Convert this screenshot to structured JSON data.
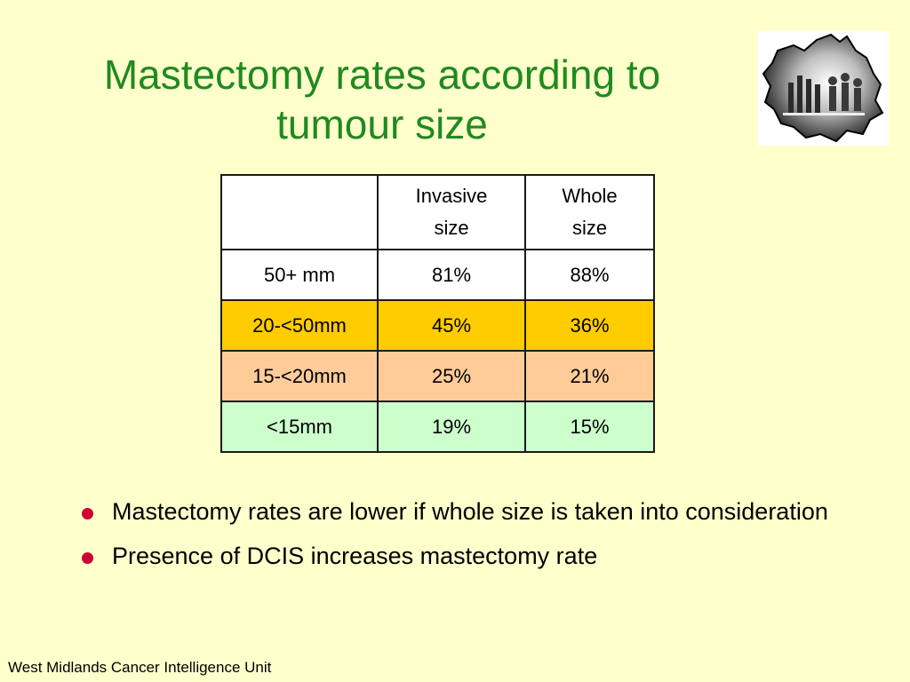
{
  "slide": {
    "title_line1": "Mastectomy rates according to",
    "title_line2": "tumour size",
    "footer": "West Midlands Cancer Intelligence Unit"
  },
  "table": {
    "headers": [
      "",
      "Invasive",
      "size",
      "Whole",
      "size"
    ],
    "rows": [
      {
        "label": "50+ mm",
        "invasive": "81%",
        "whole": "88%",
        "color": "#ffffff"
      },
      {
        "label": "20-<50mm",
        "invasive": "45%",
        "whole": "36%",
        "color": "#ffcc00"
      },
      {
        "label": "15-<20mm",
        "invasive": "25%",
        "whole": "21%",
        "color": "#ffcc99"
      },
      {
        "label": "<15mm",
        "invasive": "19%",
        "whole": "15%",
        "color": "#ccffcc"
      }
    ]
  },
  "bullets": [
    "Mastectomy rates are lower if whole size is taken into consideration",
    "Presence of DCIS increases mastectomy rate"
  ],
  "colors": {
    "background": "#ffffcc",
    "title": "#1f8a1f",
    "bullet": "#cc0033"
  },
  "logo": {
    "icon": "west-midlands-map-logo"
  }
}
